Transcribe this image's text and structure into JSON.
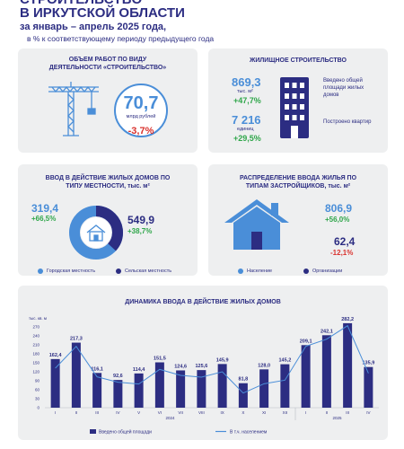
{
  "header": {
    "title_line1": "СТРОИТЕЛЬСТВО",
    "title_line2": "В ИРКУТСКОЙ ОБЛАСТИ",
    "period": "за январь – апрель 2025 года,",
    "note": "в % к соответствующему периоду предыдущего года"
  },
  "construction": {
    "title": "ОБЪЕМ РАБОТ ПО ВИДУ ДЕЯТЕЛЬНОСТИ «СТРОИТЕЛЬСТВО»",
    "value": "70,7",
    "unit": "млрд рублей",
    "change": "-3,7%"
  },
  "housing": {
    "title": "ЖИЛИЩНОЕ СТРОИТЕЛЬСТВО",
    "area_value": "869,3",
    "area_unit": "тыс. м²",
    "area_change": "+47,7%",
    "area_label": "Введено общей площади жилых домов",
    "units_value": "7 216",
    "units_unit": "единиц",
    "units_change": "+29,5%",
    "units_label": "Построено квартир"
  },
  "by_location": {
    "title": "ВВОД В ДЕЙСТВИЕ ЖИЛЫХ ДОМОВ ПО ТИПУ МЕСТНОСТИ, тыс. м²",
    "rural_value": "319,4",
    "rural_change": "+66,5%",
    "urban_value": "549,9",
    "urban_change": "+38,7%",
    "legend_urban": "Городская местность",
    "legend_rural": "Сельская местность",
    "color_urban": "#4a8ed8",
    "color_rural": "#2c2d82"
  },
  "by_developer": {
    "title": "РАСПРЕДЕЛЕНИЕ ВВОДА ЖИЛЬЯ ПО ТИПАМ ЗАСТРОЙЩИКОВ, тыс. м²",
    "population_value": "806,9",
    "population_change": "+56,0%",
    "org_value": "62,4",
    "org_change": "-12,1%",
    "legend_population": "Население",
    "legend_org": "Организации",
    "color_population": "#4a8ed8",
    "color_org": "#2c2d82"
  },
  "chart_data": {
    "type": "bar",
    "title": "ДИНАМИКА ВВОДА В ДЕЙСТВИЕ ЖИЛЫХ ДОМОВ",
    "ylabel": "тыс. кв. м",
    "ylim": [
      0,
      270
    ],
    "yticks": [
      "0",
      "30",
      "60",
      "90",
      "120",
      "150",
      "180",
      "210",
      "240",
      "270"
    ],
    "categories": [
      "I",
      "II",
      "III",
      "IV",
      "V",
      "VI",
      "VII",
      "VIII",
      "IX",
      "X",
      "XI",
      "XII",
      "I",
      "II",
      "III",
      "IV"
    ],
    "year_labels": [
      {
        "label": "2024",
        "from": 0,
        "to": 11
      },
      {
        "label": "2025",
        "from": 12,
        "to": 15
      }
    ],
    "series": [
      {
        "name": "Введено общей площади",
        "values": [
          162.4,
          217.3,
          116.1,
          92.6,
          114.4,
          151.5,
          124.6,
          125.6,
          145.9,
          81.8,
          128.0,
          145.2,
          209.1,
          242.1,
          282.2,
          135.9
        ],
        "labels": [
          "162,4",
          "217,3",
          "116,1",
          "92,6",
          "114,4",
          "151,5",
          "124,6",
          "125,6",
          "145,9",
          "81,8",
          "128,0",
          "145,2",
          "209,1",
          "242,1",
          "282,2",
          "135,9"
        ],
        "color": "#2c2d82"
      },
      {
        "name": "В т.ч. населением",
        "values": [
          132,
          205,
          103,
          85,
          79,
          128,
          108,
          102,
          120,
          49,
          80,
          92,
          205,
          229,
          274,
          115
        ],
        "color": "#4a8ed8"
      }
    ],
    "grid": false,
    "legend": "bottom"
  }
}
